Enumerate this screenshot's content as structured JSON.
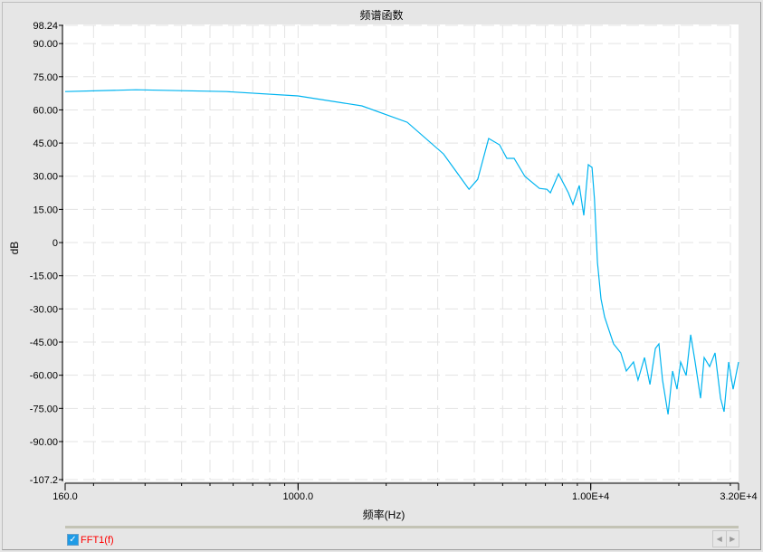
{
  "window": {
    "title": "频谱函数"
  },
  "chart_data": {
    "type": "line",
    "title": "频谱函数",
    "xlabel": "频率(Hz)",
    "ylabel": "dB",
    "xscale": "log",
    "xlim": [
      160,
      32000
    ],
    "ylim": [
      -107.2,
      98.24
    ],
    "grid": true,
    "x_tick_labels": [
      {
        "value": 160,
        "label": "160.0"
      },
      {
        "value": 1000,
        "label": "1000.0"
      },
      {
        "value": 10000,
        "label": "1.00E+4"
      },
      {
        "value": 32000,
        "label": "3.20E+4"
      }
    ],
    "y_tick_labels": [
      {
        "value": 98.24,
        "label": "98.24"
      },
      {
        "value": 90,
        "label": "90.00"
      },
      {
        "value": 75,
        "label": "75.00"
      },
      {
        "value": 60,
        "label": "60.00"
      },
      {
        "value": 45,
        "label": "45.00"
      },
      {
        "value": 30,
        "label": "30.00"
      },
      {
        "value": 15,
        "label": "15.00"
      },
      {
        "value": 0,
        "label": "0"
      },
      {
        "value": -15,
        "label": "-15.00"
      },
      {
        "value": -30,
        "label": "-30.00"
      },
      {
        "value": -45,
        "label": "-45.00"
      },
      {
        "value": -60,
        "label": "-60.00"
      },
      {
        "value": -75,
        "label": "-75.00"
      },
      {
        "value": -90,
        "label": "-90.00"
      },
      {
        "value": -107.2,
        "label": "-107.2"
      }
    ],
    "series": [
      {
        "name": "FFT1(f)",
        "color": "#00b4f0",
        "x": [
          160,
          279,
          569,
          1000,
          1652,
          2360,
          3140,
          3837,
          4110,
          4480,
          4880,
          5170,
          5470,
          5960,
          6680,
          7080,
          7280,
          7760,
          8390,
          8690,
          9140,
          9470,
          9810,
          10100,
          10300,
          10540,
          10840,
          11150,
          11550,
          11970,
          12670,
          13230,
          14000,
          14510,
          15270,
          15930,
          16630,
          17100,
          17590,
          18370,
          19040,
          19720,
          20290,
          21180,
          21950,
          22740,
          23730,
          24420,
          25480,
          26600,
          27780,
          28560,
          29600,
          30670,
          32000
        ],
        "y": [
          68.3,
          69.1,
          68.3,
          66.3,
          61.8,
          54.4,
          40.1,
          24.1,
          28.6,
          47.1,
          44.2,
          38.1,
          38.1,
          29.9,
          24.5,
          24.1,
          22.5,
          31.1,
          22.5,
          17.2,
          25.8,
          12.3,
          35.2,
          34.0,
          19.6,
          -9.0,
          -25.4,
          -33.6,
          -39.7,
          -45.8,
          -49.9,
          -58.1,
          -54.0,
          -62.2,
          -52.0,
          -64.2,
          -47.9,
          -45.8,
          -62.2,
          -77.7,
          -58.1,
          -66.3,
          -54.0,
          -60.1,
          -41.7,
          -54.0,
          -70.4,
          -52.0,
          -56.1,
          -49.9,
          -70.4,
          -76.5,
          -54.0,
          -66.3,
          -54.0
        ]
      }
    ]
  },
  "legend": {
    "checked": true,
    "check_glyph": "✓",
    "left_arrow": "◀",
    "right_arrow": "▶"
  }
}
